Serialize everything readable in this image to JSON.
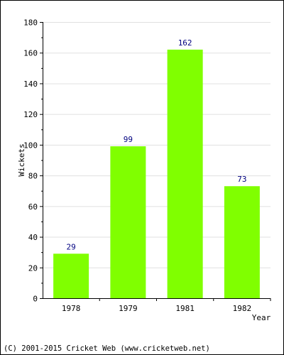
{
  "chart_data": {
    "type": "bar",
    "categories": [
      "1978",
      "1979",
      "1981",
      "1982"
    ],
    "values": [
      29,
      99,
      162,
      73
    ],
    "data_labels": [
      "29",
      "99",
      "162",
      "73"
    ],
    "xlabel": "Year",
    "ylabel": "Wickets",
    "ylim": [
      0,
      180
    ],
    "yticks": [
      "0",
      "20",
      "40",
      "60",
      "80",
      "100",
      "120",
      "140",
      "160",
      "180"
    ],
    "ytick_values": [
      0,
      20,
      40,
      60,
      80,
      100,
      120,
      140,
      160,
      180
    ],
    "grid": true,
    "legend": "none",
    "bar_color": "#80ff00",
    "label_color": "#000080",
    "grid_color": "#e0e0e0"
  },
  "footer": {
    "copyright": "(C) 2001-2015 Cricket Web (www.cricketweb.net)"
  }
}
